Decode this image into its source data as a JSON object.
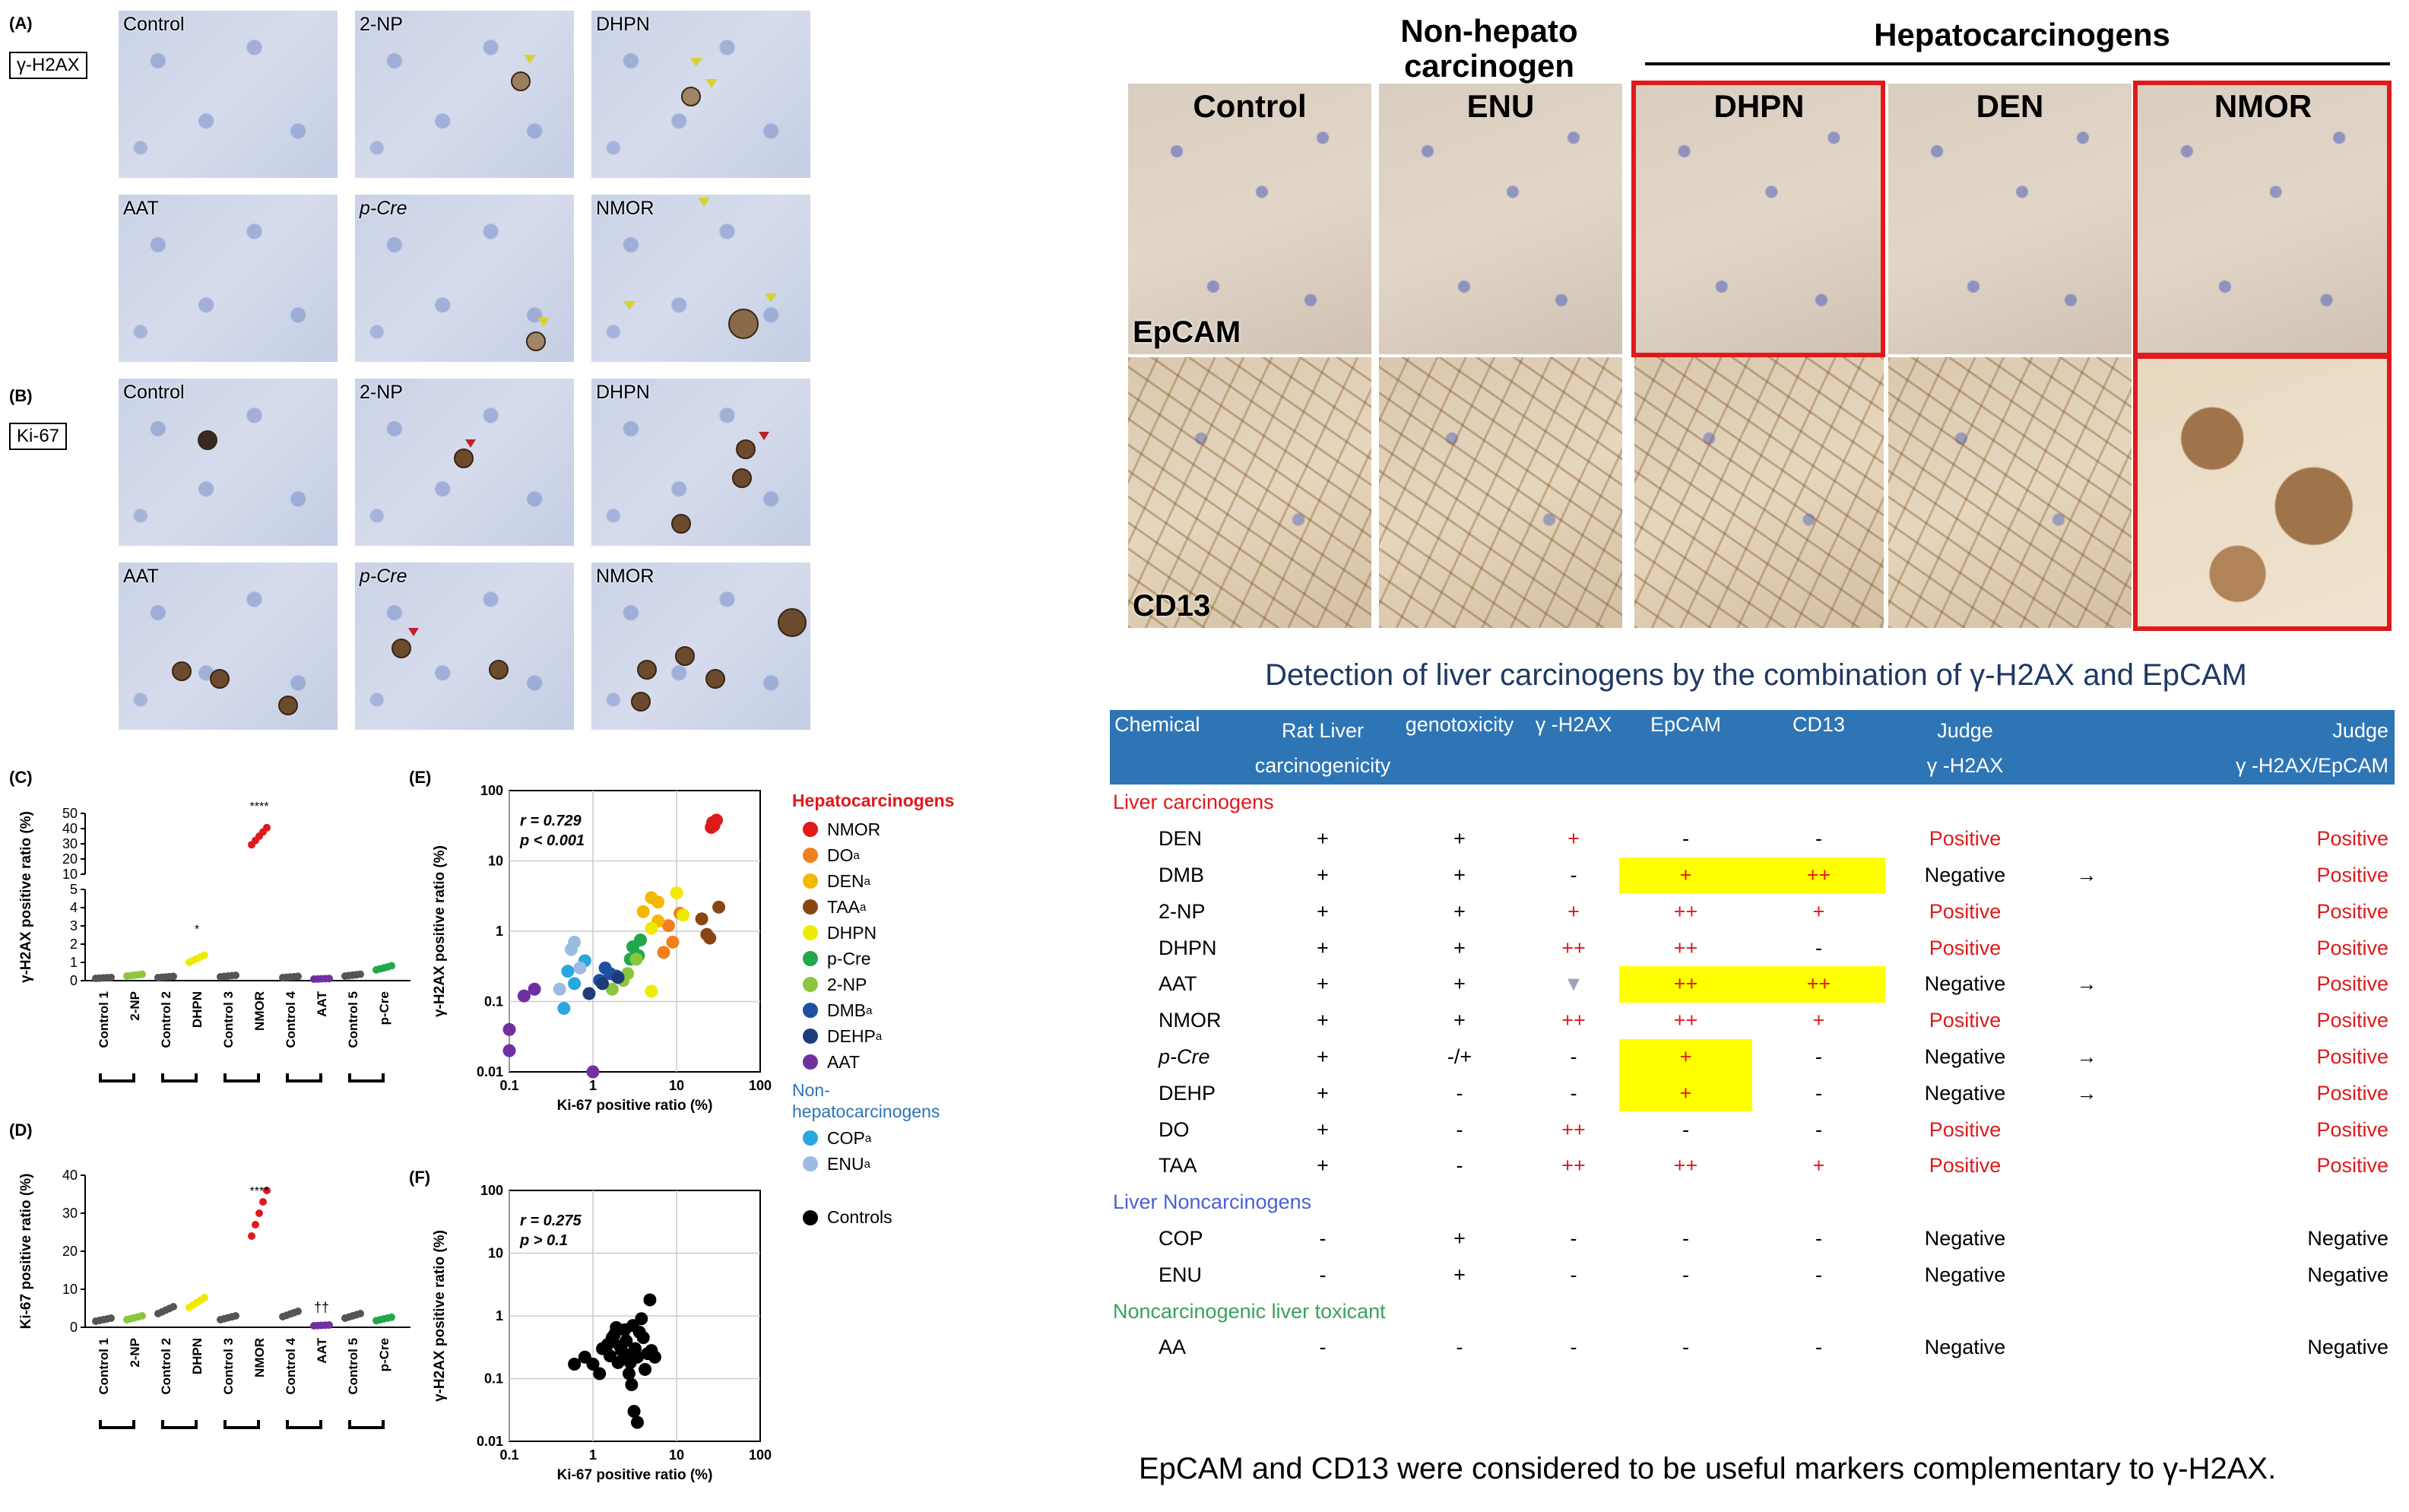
{
  "panelA": {
    "letter": "(A)",
    "stain": "γ-H2AX",
    "row1": [
      "Control",
      "2-NP",
      "DHPN"
    ],
    "row2": [
      "AAT",
      "p-Cre",
      "NMOR"
    ]
  },
  "panelB": {
    "letter": "(B)",
    "stain": "Ki-67",
    "row1": [
      "Control",
      "2-NP",
      "DHPN"
    ],
    "row2": [
      "AAT",
      "p-Cre",
      "NMOR"
    ]
  },
  "panelC": {
    "letter": "(C)",
    "ylabel": "γ-H2AX positive ratio (%)",
    "yticks": [
      "0",
      "1",
      "2",
      "3",
      "4",
      "5",
      "10",
      "20",
      "30",
      "40",
      "50"
    ],
    "cats": [
      "Control 1",
      "2-NP",
      "Control 2",
      "DHPN",
      "Control 3",
      "NMOR",
      "Control 4",
      "AAT",
      "Control 5",
      "p-Cre"
    ],
    "sig_nmor": "****",
    "sig_dhpn": "*"
  },
  "panelD": {
    "letter": "(D)",
    "ylabel": "Ki-67 positive ratio (%)",
    "yticks": [
      "0",
      "10",
      "20",
      "30",
      "40"
    ],
    "cats": [
      "Control 1",
      "2-NP",
      "Control 2",
      "DHPN",
      "Control 3",
      "NMOR",
      "Control 4",
      "AAT",
      "Control 5",
      "p-Cre"
    ],
    "sig_nmor": "****",
    "sig_aat": "††"
  },
  "panelE": {
    "letter": "(E)",
    "ylabel": "γ-H2AX positive ratio (%)",
    "xlabel": "Ki-67 positive ratio (%)",
    "r": "r = 0.729",
    "p": "p < 0.001",
    "yticks": [
      "0.01",
      "0.1",
      "1",
      "10",
      "100"
    ],
    "xticks": [
      "0.1",
      "1",
      "10",
      "100"
    ]
  },
  "panelF": {
    "letter": "(F)",
    "ylabel": "γ-H2AX positive ratio (%)",
    "xlabel": "Ki-67 positive ratio (%)",
    "r": "r = 0.275",
    "p": "p > 0.1",
    "yticks": [
      "0.01",
      "0.1",
      "1",
      "10",
      "100"
    ],
    "xticks": [
      "0.1",
      "1",
      "10",
      "100"
    ]
  },
  "legend": {
    "hepato_title": "Hepatocarcinogens",
    "hepato": [
      {
        "name": "NMOR",
        "sup": "",
        "color": "#e0191b"
      },
      {
        "name": "DO",
        "sup": "a",
        "color": "#f07f1d"
      },
      {
        "name": "DEN",
        "sup": "a",
        "color": "#f5b800"
      },
      {
        "name": "TAA",
        "sup": "a",
        "color": "#8b4513"
      },
      {
        "name": "DHPN",
        "sup": "",
        "color": "#f0ea00"
      },
      {
        "name": "p-Cre",
        "sup": "",
        "color": "#22a84a"
      },
      {
        "name": "2-NP",
        "sup": "",
        "color": "#8cc63e"
      },
      {
        "name": "DMB",
        "sup": "a",
        "color": "#1e4fa3"
      },
      {
        "name": "DEHP",
        "sup": "a",
        "color": "#1e3c7a"
      },
      {
        "name": "AAT",
        "sup": "",
        "color": "#7030a0"
      }
    ],
    "non_title": "Non-\nhepatocarcinogens",
    "non": [
      {
        "name": "COP",
        "sup": "a",
        "color": "#2aa7df"
      },
      {
        "name": "ENU",
        "sup": "a",
        "color": "#9bbbe3"
      }
    ],
    "controls": "Controls"
  },
  "tissue": {
    "col_headers": [
      "Control",
      "ENU",
      "DHPN",
      "DEN",
      "NMOR"
    ],
    "group_non": "Non-hepato\ncarcinogen",
    "group_hepato": "Hepatocarcinogens",
    "row_labels": [
      "EpCAM",
      "CD13"
    ]
  },
  "table": {
    "title": "Detection of liver carcinogens by the combination of γ-H2AX and EpCAM",
    "headers": [
      "Chemical",
      "Rat Liver\ncarcinogenicity",
      "genotoxicity",
      "γ -H2AX",
      "EpCAM",
      "CD13",
      "Judge\nγ -H2AX",
      "",
      "Judge\nγ -H2AX/EpCAM"
    ],
    "cat_liver": "Liver carcinogens",
    "cat_non": "Liver Noncarcinogens",
    "cat_tox": "Noncarcinogenic liver toxicant",
    "rows_liver": [
      [
        "DEN",
        "+",
        "+",
        "+",
        "-",
        "-",
        "Positive",
        "",
        "Positive"
      ],
      [
        "DMB",
        "+",
        "+",
        "-",
        "+",
        "++",
        "Negative",
        "→",
        "Positive"
      ],
      [
        "2-NP",
        "+",
        "+",
        "+",
        "++",
        "+",
        "Positive",
        "",
        "Positive"
      ],
      [
        "DHPN",
        "+",
        "+",
        "++",
        "++",
        "-",
        "Positive",
        "",
        "Positive"
      ],
      [
        "AAT",
        "+",
        "+",
        "▼",
        "++",
        "++",
        "Negative",
        "→",
        "Positive"
      ],
      [
        "NMOR",
        "+",
        "+",
        "++",
        "++",
        "+",
        "Positive",
        "",
        "Positive"
      ],
      [
        "p-Cre",
        "+",
        "-/+",
        "-",
        "+",
        "-",
        "Negative",
        "→",
        "Positive"
      ],
      [
        "DEHP",
        "+",
        "-",
        "-",
        "+",
        "-",
        "Negative",
        "→",
        "Positive"
      ],
      [
        "DO",
        "+",
        "-",
        "++",
        "-",
        "-",
        "Positive",
        "",
        "Positive"
      ],
      [
        "TAA",
        "+",
        "-",
        "++",
        "++",
        "+",
        "Positive",
        "",
        "Positive"
      ]
    ],
    "rows_non": [
      [
        "COP",
        "-",
        "+",
        "-",
        "-",
        "-",
        "Negative",
        "",
        "Negative"
      ],
      [
        "ENU",
        "-",
        "+",
        "-",
        "-",
        "-",
        "Negative",
        "",
        "Negative"
      ]
    ],
    "rows_tox": [
      [
        "AA",
        "-",
        "-",
        "-",
        "-",
        "-",
        "Negative",
        "",
        "Negative"
      ]
    ]
  },
  "footer": "EpCAM and CD13 were considered to be useful markers complementary to γ-H2AX.",
  "chart_data": [
    {
      "type": "scatter",
      "title": "",
      "panel": "(C)",
      "categories": [
        "Control 1",
        "2-NP",
        "Control 2",
        "DHPN",
        "Control 3",
        "NMOR",
        "Control 4",
        "AAT",
        "Control 5",
        "p-Cre"
      ],
      "values": [
        0.15,
        0.3,
        0.2,
        1.2,
        0.25,
        35,
        0.2,
        0.1,
        0.3,
        0.7
      ],
      "ylabel": "γ-H2AX positive ratio (%)"
    },
    {
      "type": "scatter",
      "title": "",
      "panel": "(D)",
      "categories": [
        "Control 1",
        "2-NP",
        "Control 2",
        "DHPN",
        "Control 3",
        "NMOR",
        "Control 4",
        "AAT",
        "Control 5",
        "p-Cre"
      ],
      "values": [
        2,
        2.5,
        4.5,
        6.5,
        2.5,
        30,
        3.5,
        0.5,
        3,
        2.2
      ],
      "ylabel": "Ki-67 positive ratio (%)",
      "ylim": [
        0,
        40
      ]
    },
    {
      "type": "scatter",
      "title": "",
      "panel": "(E)",
      "xlabel": "Ki-67 positive ratio (%)",
      "ylabel": "γ-H2AX positive ratio (%)",
      "log": true,
      "series": [
        {
          "name": "NMOR",
          "points": [
            [
              27,
              35
            ],
            [
              28,
              32
            ],
            [
              30,
              38
            ],
            [
              26,
              30
            ]
          ]
        },
        {
          "name": "DO",
          "points": [
            [
              11,
              1.8
            ],
            [
              8,
              1.2
            ],
            [
              9,
              0.7
            ],
            [
              7,
              0.5
            ]
          ]
        },
        {
          "name": "DEN",
          "points": [
            [
              5,
              3
            ],
            [
              6,
              2.6
            ],
            [
              4,
              1.9
            ],
            [
              6,
              1.4
            ]
          ]
        },
        {
          "name": "TAA",
          "points": [
            [
              20,
              1.5
            ],
            [
              23,
              0.9
            ],
            [
              25,
              0.8
            ],
            [
              32,
              2.2
            ]
          ]
        },
        {
          "name": "DHPN",
          "points": [
            [
              10,
              3.5
            ],
            [
              12,
              1.7
            ],
            [
              5,
              1.1
            ],
            [
              5,
              0.14
            ]
          ]
        },
        {
          "name": "p-Cre",
          "points": [
            [
              3.7,
              0.75
            ],
            [
              3,
              0.6
            ],
            [
              3.5,
              0.45
            ],
            [
              2.8,
              0.4
            ]
          ]
        },
        {
          "name": "2-NP",
          "points": [
            [
              2.6,
              0.25
            ],
            [
              2.3,
              0.2
            ],
            [
              1.7,
              0.15
            ],
            [
              3.3,
              0.4
            ]
          ]
        },
        {
          "name": "DMB",
          "points": [
            [
              1.4,
              0.3
            ],
            [
              1.2,
              0.2
            ],
            [
              1.6,
              0.25
            ],
            [
              1.9,
              0.23
            ]
          ]
        },
        {
          "name": "DEHP",
          "points": [
            [
              0.9,
              0.13
            ],
            [
              1.3,
              0.18
            ],
            [
              2,
              0.22
            ]
          ]
        },
        {
          "name": "AAT",
          "points": [
            [
              0.1,
              0.04
            ],
            [
              0.1,
              0.02
            ],
            [
              0.15,
              0.12
            ],
            [
              1,
              0.01
            ],
            [
              0.2,
              0.15
            ]
          ]
        },
        {
          "name": "COP",
          "points": [
            [
              0.5,
              0.27
            ],
            [
              0.6,
              0.18
            ],
            [
              0.8,
              0.38
            ],
            [
              0.45,
              0.08
            ]
          ]
        },
        {
          "name": "ENU",
          "points": [
            [
              0.55,
              0.55
            ],
            [
              0.6,
              0.7
            ],
            [
              0.7,
              0.3
            ],
            [
              0.4,
              0.15
            ]
          ]
        }
      ]
    },
    {
      "type": "scatter",
      "title": "",
      "panel": "(F)",
      "xlabel": "Ki-67 positive ratio (%)",
      "ylabel": "γ-H2AX positive ratio (%)",
      "log": true,
      "series": [
        {
          "name": "Controls",
          "points": [
            [
              0.6,
              0.17
            ],
            [
              0.8,
              0.22
            ],
            [
              1,
              0.17
            ],
            [
              1.2,
              0.12
            ],
            [
              1.3,
              0.3
            ],
            [
              1.5,
              0.35
            ],
            [
              1.6,
              0.23
            ],
            [
              1.7,
              0.45
            ],
            [
              1.8,
              0.5
            ],
            [
              2,
              0.18
            ],
            [
              2.1,
              0.33
            ],
            [
              2.2,
              0.28
            ],
            [
              2.4,
              0.6
            ],
            [
              2.5,
              0.4
            ],
            [
              2.6,
              0.24
            ],
            [
              2.7,
              0.12
            ],
            [
              2.8,
              0.18
            ],
            [
              3,
              0.7
            ],
            [
              3.2,
              0.3
            ],
            [
              3.4,
              0.22
            ],
            [
              3.6,
              0.55
            ],
            [
              3.8,
              0.9
            ],
            [
              4,
              0.45
            ],
            [
              4.2,
              0.14
            ],
            [
              4.5,
              0.25
            ],
            [
              4.8,
              1.8
            ],
            [
              5,
              0.28
            ],
            [
              2.9,
              0.08
            ],
            [
              3.1,
              0.03
            ],
            [
              3.4,
              0.02
            ],
            [
              1.9,
              0.65
            ],
            [
              5.5,
              0.22
            ]
          ]
        }
      ]
    }
  ]
}
